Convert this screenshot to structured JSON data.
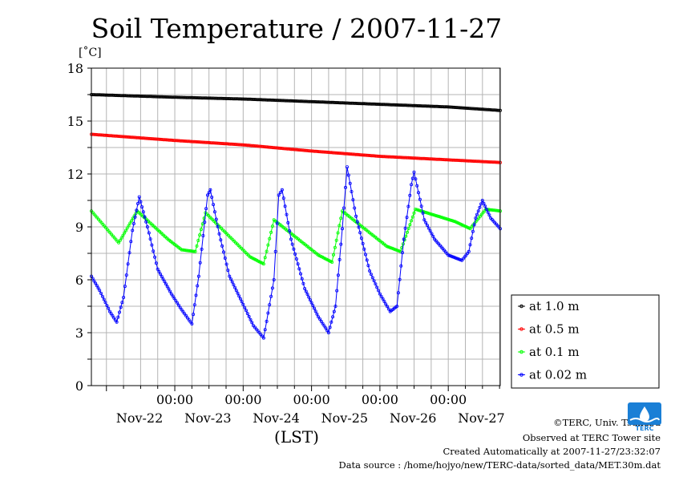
{
  "chart_data": {
    "type": "line",
    "title": "Soil Temperature / 2007-11-27",
    "unit_label": "[˚C]",
    "xlabel": "(LST)",
    "ylim": [
      0,
      18
    ],
    "xlim": [
      -0.22,
      5.76
    ],
    "y_ticks": [
      "0",
      "3",
      "6",
      "9",
      "12",
      "15",
      "18"
    ],
    "x_tick_time": "00:00",
    "x_ticks": [
      {
        "time": "00:00",
        "date": "Nov-22",
        "x": 1
      },
      {
        "time": "00:00",
        "date": "Nov-23",
        "x": 2
      },
      {
        "time": "00:00",
        "date": "Nov-24",
        "x": 3
      },
      {
        "time": "00:00",
        "date": "Nov-25",
        "x": 4
      },
      {
        "time": "00:00",
        "date": "Nov-26",
        "x": 5
      },
      {
        "date": "Nov-27",
        "x": 6
      }
    ],
    "grid": true,
    "legend_position": "right",
    "series": [
      {
        "name": "at 1.0 m",
        "color": "#000000",
        "points": [
          [
            -0.22,
            16.5
          ],
          [
            1,
            16.35
          ],
          [
            2,
            16.25
          ],
          [
            3,
            16.1
          ],
          [
            4,
            15.95
          ],
          [
            5,
            15.8
          ],
          [
            5.76,
            15.6
          ]
        ]
      },
      {
        "name": "at 0.5 m",
        "color": "#ff0000",
        "points": [
          [
            -0.22,
            14.25
          ],
          [
            1,
            13.9
          ],
          [
            2,
            13.65
          ],
          [
            3,
            13.3
          ],
          [
            4,
            13.0
          ],
          [
            5,
            12.8
          ],
          [
            5.76,
            12.65
          ]
        ]
      },
      {
        "name": "at 0.1 m",
        "color": "#00ff00",
        "points": [
          [
            -0.22,
            9.9
          ],
          [
            0.18,
            8.1
          ],
          [
            0.45,
            9.9
          ],
          [
            0.9,
            8.3
          ],
          [
            1.1,
            7.7
          ],
          [
            1.3,
            7.6
          ],
          [
            1.45,
            9.8
          ],
          [
            2.1,
            7.3
          ],
          [
            2.3,
            6.9
          ],
          [
            2.45,
            9.4
          ],
          [
            3.1,
            7.4
          ],
          [
            3.3,
            7.0
          ],
          [
            3.45,
            9.9
          ],
          [
            4.1,
            7.9
          ],
          [
            4.3,
            7.6
          ],
          [
            4.52,
            10.0
          ],
          [
            5.1,
            9.3
          ],
          [
            5.32,
            8.9
          ],
          [
            5.55,
            10.0
          ],
          [
            5.76,
            9.9
          ]
        ]
      },
      {
        "name": "at 0.02 m",
        "color": "#0000ff",
        "points": [
          [
            -0.22,
            6.2
          ],
          [
            -0.1,
            5.4
          ],
          [
            0.05,
            4.2
          ],
          [
            0.15,
            3.6
          ],
          [
            0.25,
            5.0
          ],
          [
            0.38,
            8.8
          ],
          [
            0.48,
            10.7
          ],
          [
            0.6,
            9.0
          ],
          [
            0.75,
            6.6
          ],
          [
            0.95,
            5.2
          ],
          [
            1.1,
            4.3
          ],
          [
            1.25,
            3.5
          ],
          [
            1.35,
            6.2
          ],
          [
            1.48,
            10.8
          ],
          [
            1.52,
            11.1
          ],
          [
            1.65,
            8.6
          ],
          [
            1.8,
            6.2
          ],
          [
            2.0,
            4.6
          ],
          [
            2.15,
            3.4
          ],
          [
            2.3,
            2.7
          ],
          [
            2.45,
            6.0
          ],
          [
            2.52,
            10.8
          ],
          [
            2.57,
            11.1
          ],
          [
            2.7,
            8.3
          ],
          [
            2.9,
            5.5
          ],
          [
            3.1,
            3.9
          ],
          [
            3.25,
            3.0
          ],
          [
            3.35,
            4.5
          ],
          [
            3.45,
            8.9
          ],
          [
            3.52,
            12.4
          ],
          [
            3.65,
            9.6
          ],
          [
            3.85,
            6.5
          ],
          [
            4.0,
            5.2
          ],
          [
            4.15,
            4.2
          ],
          [
            4.25,
            4.5
          ],
          [
            4.35,
            8.3
          ],
          [
            4.46,
            11.4
          ],
          [
            4.5,
            12.1
          ],
          [
            4.65,
            9.4
          ],
          [
            4.8,
            8.3
          ],
          [
            5.0,
            7.4
          ],
          [
            5.2,
            7.1
          ],
          [
            5.3,
            7.6
          ],
          [
            5.4,
            9.5
          ],
          [
            5.5,
            10.5
          ],
          [
            5.62,
            9.5
          ],
          [
            5.76,
            8.9
          ]
        ]
      }
    ]
  },
  "footer": {
    "copyright": "©TERC, Univ. Tsukuba",
    "observed": "Observed at TERC Tower site",
    "created": "Created Automatically at 2007-11-27/23:32:07",
    "source": "Data source : /home/hojyo/new/TERC-data/sorted_data/MET.30m.dat"
  },
  "logo": {
    "name": "terc-logo",
    "text": "TERC",
    "color": "#1a7fd6"
  }
}
